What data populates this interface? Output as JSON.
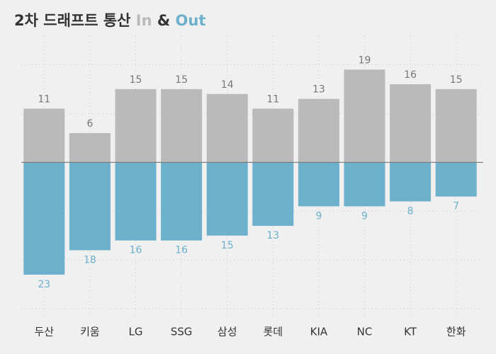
{
  "chart_data": {
    "type": "diverging-bar",
    "title": "2차 드래프트 통산",
    "legend_separator": "&",
    "categories": [
      "두산",
      "키움",
      "LG",
      "SSG",
      "삼성",
      "롯데",
      "KIA",
      "NC",
      "KT",
      "한화"
    ],
    "series": [
      {
        "name": "In",
        "color": "#bababa",
        "label_color": "#777777",
        "values": [
          11,
          6,
          15,
          15,
          14,
          11,
          13,
          19,
          16,
          15
        ]
      },
      {
        "name": "Out",
        "color": "#6cb0cc",
        "label_color": "#6cb0cc",
        "values": [
          -23,
          -18,
          -16,
          -16,
          -15,
          -13,
          -9,
          -9,
          -8,
          -7
        ],
        "value_labels": [
          "23",
          "18",
          "16",
          "16",
          "15",
          "13",
          "9",
          "9",
          "8",
          "7"
        ]
      }
    ],
    "ylim": [
      -32,
      26
    ],
    "yticks": [
      -30,
      -20,
      -10,
      0,
      10,
      20
    ],
    "grid": true
  }
}
